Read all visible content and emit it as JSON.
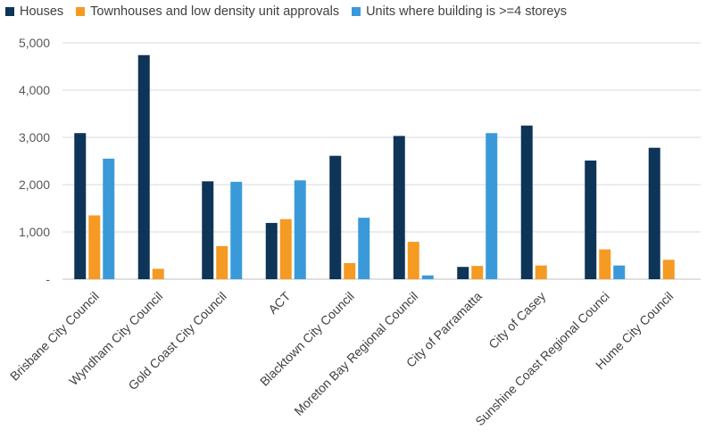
{
  "colors": {
    "houses": "#0e3458",
    "townhouses": "#f59a23",
    "units": "#3a9ad9",
    "grid": "#d9d9d9",
    "axis": "#bfbfbf"
  },
  "chart_data": {
    "type": "bar",
    "title": "",
    "xlabel": "",
    "ylabel": "",
    "ylim": [
      0,
      5000
    ],
    "y_ticks": [
      0,
      1000,
      2000,
      3000,
      4000,
      5000
    ],
    "y_tick_labels": [
      "-",
      "1,000",
      "2,000",
      "3,000",
      "4,000",
      "5,000"
    ],
    "grid": true,
    "legend_position": "top",
    "categories": [
      "Brisbane City Council",
      "Wyndham City Council",
      "Gold Coast City Council",
      "ACT",
      "Blacktown City Council",
      "Moreton Bay Regional Council",
      "City of Parramatta",
      "City of Casey",
      "Sunshine Coast Regional Counci",
      "Hume  City Council"
    ],
    "series": [
      {
        "name": "Houses",
        "color": "#0e3458",
        "values": [
          3090,
          4740,
          2070,
          1190,
          2610,
          3030,
          260,
          3250,
          2510,
          2780
        ]
      },
      {
        "name": "Townhouses and low density unit approvals",
        "color": "#f59a23",
        "values": [
          1350,
          220,
          700,
          1270,
          340,
          790,
          280,
          290,
          630,
          410
        ]
      },
      {
        "name": "Units where building is >=4 storeys",
        "color": "#3a9ad9",
        "values": [
          2550,
          0,
          2060,
          2090,
          1300,
          80,
          3090,
          0,
          290,
          0
        ]
      }
    ]
  }
}
